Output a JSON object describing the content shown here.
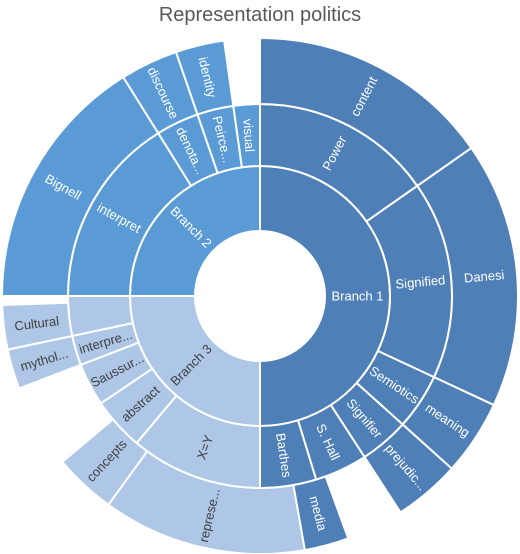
{
  "chart_data": {
    "type": "sunburst",
    "title": "Representation politics",
    "nodes": [
      {
        "id": "b1",
        "label": "Branch 1",
        "level": 1,
        "start": 0,
        "end": 180,
        "color": "#4e7fb6",
        "text_color": "#ffffff"
      },
      {
        "id": "b2",
        "label": "Branch 2",
        "level": 1,
        "start": 270,
        "end": 360,
        "color": "#5b9bd5",
        "text_color": "#ffffff"
      },
      {
        "id": "b3",
        "label": "Branch 3",
        "level": 1,
        "start": 180,
        "end": 270,
        "color": "#aec7e6",
        "text_color": "#404040"
      },
      {
        "id": "b1-power",
        "label": "Power",
        "level": 2,
        "start": 0,
        "end": 55,
        "color": "#4e7fb6",
        "text_color": "#ffffff"
      },
      {
        "id": "b1-signified",
        "label": "Signified",
        "level": 2,
        "start": 55,
        "end": 115,
        "color": "#4e7fb6",
        "text_color": "#ffffff"
      },
      {
        "id": "b1-semiotics",
        "label": "Semiotics",
        "level": 2,
        "start": 115,
        "end": 132,
        "color": "#4e7fb6",
        "text_color": "#ffffff"
      },
      {
        "id": "b1-signifier",
        "label": "Signifier",
        "level": 2,
        "start": 132,
        "end": 147,
        "color": "#4e7fb6",
        "text_color": "#ffffff"
      },
      {
        "id": "b1-shall",
        "label": "S. Hall",
        "level": 2,
        "start": 147,
        "end": 163,
        "color": "#4e7fb6",
        "text_color": "#ffffff"
      },
      {
        "id": "b1-barthes",
        "label": "Barthes",
        "level": 2,
        "start": 163,
        "end": 180,
        "color": "#4e7fb6",
        "text_color": "#ffffff"
      },
      {
        "id": "b1-content",
        "label": "content",
        "level": 3,
        "start": 0,
        "end": 55,
        "color": "#4e7fb6",
        "text_color": "#ffffff"
      },
      {
        "id": "b1-danesi",
        "label": "Danesi",
        "level": 3,
        "start": 55,
        "end": 115,
        "color": "#4e7fb6",
        "text_color": "#ffffff"
      },
      {
        "id": "b1-meaning",
        "label": "meaning",
        "level": 3,
        "start": 115,
        "end": 132,
        "color": "#4e7fb6",
        "text_color": "#ffffff"
      },
      {
        "id": "b1-prejudice",
        "label": "prejudic...",
        "level": 3,
        "start": 132,
        "end": 147,
        "color": "#4e7fb6",
        "text_color": "#ffffff"
      },
      {
        "id": "b2-interpret",
        "label": "interpret",
        "level": 2,
        "start": 270,
        "end": 328,
        "color": "#5b9bd5",
        "text_color": "#ffffff"
      },
      {
        "id": "b2-denota",
        "label": "denota...",
        "level": 2,
        "start": 328,
        "end": 341,
        "color": "#5b9bd5",
        "text_color": "#ffffff"
      },
      {
        "id": "b2-peirce",
        "label": "Peirce...",
        "level": 2,
        "start": 341,
        "end": 352,
        "color": "#5b9bd5",
        "text_color": "#ffffff"
      },
      {
        "id": "b2-visual",
        "label": "visual",
        "level": 2,
        "start": 352,
        "end": 360,
        "color": "#5b9bd5",
        "text_color": "#ffffff"
      },
      {
        "id": "b2-bignell",
        "label": "Bignell",
        "level": 3,
        "start": 270,
        "end": 328,
        "color": "#5b9bd5",
        "text_color": "#ffffff"
      },
      {
        "id": "b2-discourse",
        "label": "discourse",
        "level": 3,
        "start": 328,
        "end": 341,
        "color": "#5b9bd5",
        "text_color": "#ffffff"
      },
      {
        "id": "b2-identity",
        "label": "identity",
        "level": 3,
        "start": 341,
        "end": 352,
        "color": "#5b9bd5",
        "text_color": "#ffffff"
      },
      {
        "id": "b3-x",
        "label": "X=Y",
        "level": 2,
        "start": 180,
        "end": 220,
        "color": "#aec7e6",
        "text_color": "#404040"
      },
      {
        "id": "b3-abstract",
        "label": "abstract",
        "level": 2,
        "start": 220,
        "end": 236,
        "color": "#aec7e6",
        "text_color": "#404040"
      },
      {
        "id": "b3-saussure",
        "label": "Saussur...",
        "level": 2,
        "start": 236,
        "end": 249,
        "color": "#aec7e6",
        "text_color": "#404040"
      },
      {
        "id": "b3-interpre",
        "label": "interpre...",
        "level": 2,
        "start": 249,
        "end": 258,
        "color": "#aec7e6",
        "text_color": "#404040"
      },
      {
        "id": "b3-blank",
        "label": "",
        "level": 2,
        "start": 258,
        "end": 270,
        "color": "#aec7e6",
        "text_color": "#404040"
      },
      {
        "id": "b1-media",
        "label": "media",
        "level": 3,
        "start": 160,
        "end": 170,
        "color": "#4e7fb6",
        "text_color": "#ffffff"
      },
      {
        "id": "b3-represe",
        "label": "represe...",
        "level": 3,
        "start": 170,
        "end": 216,
        "color": "#aec7e6",
        "text_color": "#404040"
      },
      {
        "id": "b3-concepts",
        "label": "concepts",
        "level": 3,
        "start": 216,
        "end": 230,
        "color": "#aec7e6",
        "text_color": "#404040"
      },
      {
        "id": "b3-mythol",
        "label": "mythol...",
        "level": 3,
        "start": 249,
        "end": 258,
        "color": "#aec7e6",
        "text_color": "#404040"
      },
      {
        "id": "b3-cultural",
        "label": "Cultural",
        "level": 3,
        "start": 258,
        "end": 268,
        "color": "#aec7e6",
        "text_color": "#404040"
      }
    ]
  }
}
